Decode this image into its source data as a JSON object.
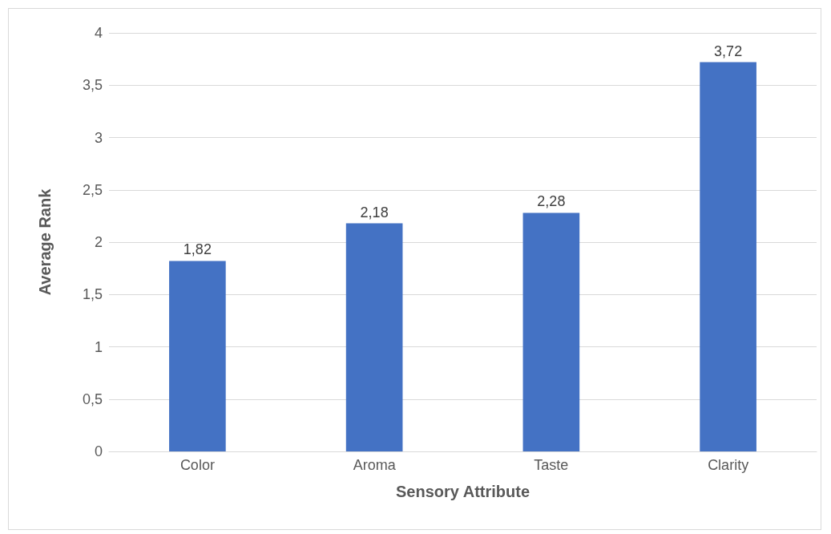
{
  "chart_data": {
    "type": "bar",
    "xlabel": "Sensory Attribute",
    "ylabel": "Average Rank",
    "categories": [
      "Color",
      "Aroma",
      "Taste",
      "Clarity"
    ],
    "values": [
      1.82,
      2.18,
      2.28,
      3.72
    ],
    "value_labels": [
      "1,82",
      "2,18",
      "2,28",
      "3,72"
    ],
    "color": "#4472c4",
    "ylim": [
      0,
      4
    ],
    "yticks": [
      0,
      {
        "value": 0.5,
        "label": "0,5"
      },
      1,
      {
        "value": 1.5,
        "label": "1,5"
      },
      2,
      {
        "value": 2.5,
        "label": "2,5"
      },
      3,
      {
        "value": 3.5,
        "label": "3,5"
      },
      4
    ],
    "grid": "y"
  }
}
